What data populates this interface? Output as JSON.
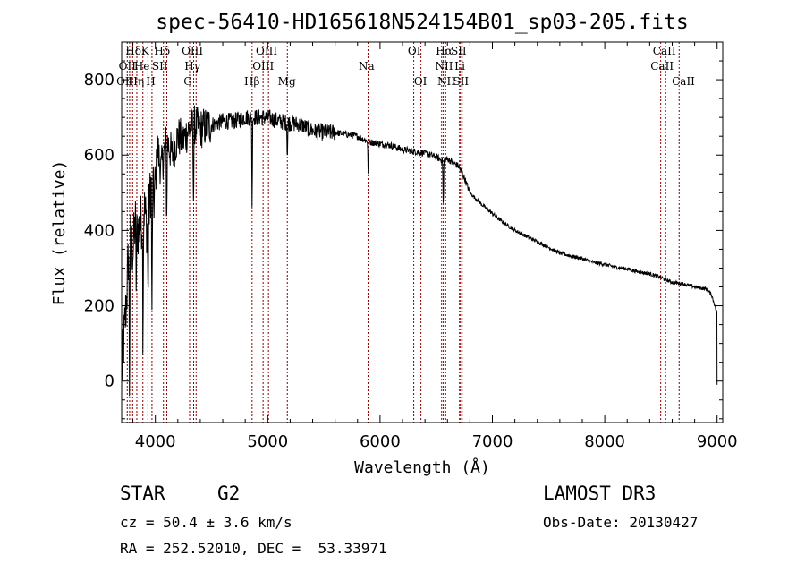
{
  "chart_data": {
    "type": "line",
    "title": "spec-56410-HD165618N524154B01_sp03-205.fits",
    "xlabel": "Wavelength (Å)",
    "ylabel": "Flux (relative)",
    "xlim": [
      3700,
      9050
    ],
    "ylim": [
      -110,
      900
    ],
    "x_ticks": [
      4000,
      5000,
      6000,
      7000,
      8000,
      9000
    ],
    "y_ticks": [
      0,
      200,
      400,
      600,
      800
    ],
    "grid": false,
    "series": [
      {
        "style": "noisy-line",
        "color": "#000000",
        "points": [
          [
            3700,
            20
          ],
          [
            3740,
            200
          ],
          [
            3760,
            330
          ],
          [
            3780,
            380
          ],
          [
            3800,
            340
          ],
          [
            3820,
            420
          ],
          [
            3850,
            400
          ],
          [
            3880,
            430
          ],
          [
            3900,
            460
          ],
          [
            3930,
            400
          ],
          [
            3960,
            520
          ],
          [
            3990,
            480
          ],
          [
            4020,
            620
          ],
          [
            4050,
            560
          ],
          [
            4100,
            640
          ],
          [
            4150,
            600
          ],
          [
            4200,
            650
          ],
          [
            4250,
            640
          ],
          [
            4300,
            670
          ],
          [
            4350,
            680
          ],
          [
            4400,
            670
          ],
          [
            4500,
            680
          ],
          [
            4600,
            690
          ],
          [
            4700,
            690
          ],
          [
            4800,
            700
          ],
          [
            4900,
            700
          ],
          [
            5000,
            700
          ],
          [
            5100,
            690
          ],
          [
            5200,
            685
          ],
          [
            5300,
            680
          ],
          [
            5400,
            665
          ],
          [
            5500,
            660
          ],
          [
            5600,
            660
          ],
          [
            5700,
            655
          ],
          [
            5800,
            650
          ],
          [
            5900,
            635
          ],
          [
            6000,
            630
          ],
          [
            6100,
            625
          ],
          [
            6200,
            615
          ],
          [
            6300,
            610
          ],
          [
            6400,
            605
          ],
          [
            6500,
            595
          ],
          [
            6560,
            585
          ],
          [
            6600,
            590
          ],
          [
            6700,
            570
          ],
          [
            6750,
            540
          ],
          [
            6800,
            500
          ],
          [
            6900,
            470
          ],
          [
            7000,
            445
          ],
          [
            7100,
            420
          ],
          [
            7200,
            400
          ],
          [
            7300,
            385
          ],
          [
            7400,
            370
          ],
          [
            7500,
            355
          ],
          [
            7600,
            340
          ],
          [
            7700,
            332
          ],
          [
            7800,
            325
          ],
          [
            7900,
            315
          ],
          [
            8000,
            310
          ],
          [
            8100,
            302
          ],
          [
            8200,
            298
          ],
          [
            8300,
            290
          ],
          [
            8400,
            285
          ],
          [
            8500,
            275
          ],
          [
            8600,
            262
          ],
          [
            8700,
            258
          ],
          [
            8800,
            250
          ],
          [
            8900,
            245
          ],
          [
            8950,
            230
          ],
          [
            9000,
            180
          ]
        ],
        "dips": [
          [
            3770,
            -90
          ],
          [
            3830,
            240
          ],
          [
            3890,
            90
          ],
          [
            3935,
            200
          ],
          [
            3970,
            140
          ],
          [
            4101,
            400
          ],
          [
            4340,
            450
          ],
          [
            4861,
            450
          ],
          [
            5175,
            590
          ],
          [
            5895,
            525
          ],
          [
            6563,
            450
          ]
        ]
      }
    ],
    "line_markers": [
      {
        "x": 3750,
        "color": "#8b0000"
      },
      {
        "x": 3771,
        "color": "#8b0000"
      },
      {
        "x": 3798,
        "color": "#8b0000"
      },
      {
        "x": 3835,
        "color": "#8b0000"
      },
      {
        "x": 3889,
        "color": "#8b0000"
      },
      {
        "x": 3934,
        "color": "#8b0000"
      },
      {
        "x": 3970,
        "color": "#8b0000"
      },
      {
        "x": 4072,
        "color": "#8b0000"
      },
      {
        "x": 4102,
        "color": "#8b0000"
      },
      {
        "x": 4305,
        "color": "#8b0000"
      },
      {
        "x": 4341,
        "color": "#8b0000"
      },
      {
        "x": 4363,
        "color": "#8b0000"
      },
      {
        "x": 4861,
        "color": "#8b0000"
      },
      {
        "x": 4959,
        "color": "#8b0000"
      },
      {
        "x": 5007,
        "color": "#8b0000"
      },
      {
        "x": 5175,
        "color": "#8b0000"
      },
      {
        "x": 5893,
        "color": "#8b0000"
      },
      {
        "x": 6300,
        "color": "#8b0000"
      },
      {
        "x": 6364,
        "color": "#8b0000"
      },
      {
        "x": 6548,
        "color": "#8b0000"
      },
      {
        "x": 6563,
        "color": "#8b0000"
      },
      {
        "x": 6584,
        "color": "#8b0000"
      },
      {
        "x": 6707,
        "color": "#8b0000"
      },
      {
        "x": 6716,
        "color": "#8b0000"
      },
      {
        "x": 6731,
        "color": "#8b0000"
      },
      {
        "x": 8498,
        "color": "#8b0000"
      },
      {
        "x": 8542,
        "color": "#8b0000"
      },
      {
        "x": 8662,
        "color": "#8b0000"
      }
    ],
    "line_labels": [
      {
        "text": "Hδ",
        "x": 3805,
        "row": 0
      },
      {
        "text": "K",
        "x": 3910,
        "row": 0
      },
      {
        "text": "Hδ",
        "x": 4060,
        "row": 0
      },
      {
        "text": "OIII",
        "x": 4330,
        "row": 0
      },
      {
        "text": "OIII",
        "x": 4990,
        "row": 0
      },
      {
        "text": "OI",
        "x": 6305,
        "row": 0
      },
      {
        "text": "Hα",
        "x": 6570,
        "row": 0
      },
      {
        "text": "SII",
        "x": 6700,
        "row": 0
      },
      {
        "text": "CaII",
        "x": 8530,
        "row": 0
      },
      {
        "text": "OII",
        "x": 3750,
        "row": 1
      },
      {
        "text": "He",
        "x": 3880,
        "row": 1
      },
      {
        "text": "SII",
        "x": 4040,
        "row": 1
      },
      {
        "text": "Hγ",
        "x": 4330,
        "row": 1
      },
      {
        "text": "OIII",
        "x": 4960,
        "row": 1
      },
      {
        "text": "Na",
        "x": 5880,
        "row": 1
      },
      {
        "text": "NII",
        "x": 6570,
        "row": 1
      },
      {
        "text": "Li",
        "x": 6710,
        "row": 1
      },
      {
        "text": "CaII",
        "x": 8510,
        "row": 1
      },
      {
        "text": "OII",
        "x": 3730,
        "row": 2
      },
      {
        "text": "Hη",
        "x": 3830,
        "row": 2
      },
      {
        "text": "H",
        "x": 3960,
        "row": 2
      },
      {
        "text": "G",
        "x": 4290,
        "row": 2
      },
      {
        "text": "Hβ",
        "x": 4860,
        "row": 2
      },
      {
        "text": "Mg",
        "x": 5170,
        "row": 2
      },
      {
        "text": "OI",
        "x": 6360,
        "row": 2
      },
      {
        "text": "NII",
        "x": 6590,
        "row": 2
      },
      {
        "text": "SII",
        "x": 6720,
        "row": 2
      },
      {
        "text": "CaII",
        "x": 8700,
        "row": 2
      }
    ]
  },
  "info": {
    "object_class": "STAR",
    "subclass": "G2",
    "survey": "LAMOST DR3",
    "redshift": "cz = 50.4 ± 3.6 km/s",
    "obs_date": "Obs-Date: 20130427",
    "coords": "RA = 252.52010, DEC =  53.33971"
  }
}
